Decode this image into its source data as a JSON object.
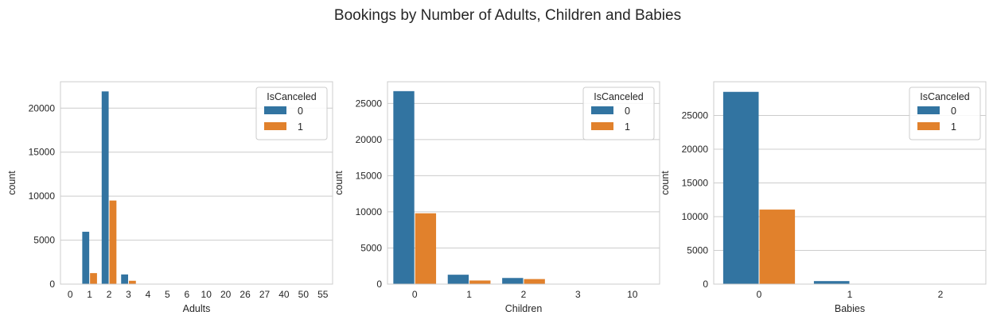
{
  "suptitle": "Bookings by Number of Adults, Children and Babies",
  "colors": {
    "series0": "#3274a1",
    "series1": "#e1812c",
    "grid": "#cccccc",
    "spine": "#cccccc"
  },
  "chart_data": [
    {
      "type": "bar",
      "xlabel": "Adults",
      "ylabel": "count",
      "ylim": [
        0,
        23000
      ],
      "yticks": [
        0,
        5000,
        10000,
        15000,
        20000
      ],
      "categories": [
        "0",
        "1",
        "2",
        "3",
        "4",
        "5",
        "6",
        "10",
        "20",
        "26",
        "27",
        "40",
        "50",
        "55"
      ],
      "series": [
        {
          "name": "0",
          "values": [
            20,
            5950,
            21900,
            1100,
            40,
            5,
            2,
            1,
            1,
            1,
            1,
            1,
            1,
            1
          ]
        },
        {
          "name": "1",
          "values": [
            25,
            1250,
            9500,
            380,
            10,
            1,
            1,
            1,
            1,
            1,
            1,
            1,
            1,
            1
          ]
        }
      ],
      "legend": {
        "title": "IsCanceled",
        "placement": "top-right"
      },
      "grid": "y"
    },
    {
      "type": "bar",
      "xlabel": "Children",
      "ylabel": "count",
      "ylim": [
        0,
        28000
      ],
      "yticks": [
        0,
        5000,
        10000,
        15000,
        20000,
        25000
      ],
      "categories": [
        "0",
        "1",
        "2",
        "3",
        "10"
      ],
      "series": [
        {
          "name": "0",
          "values": [
            26700,
            1300,
            850,
            10,
            1
          ]
        },
        {
          "name": "1",
          "values": [
            9800,
            500,
            700,
            5,
            0
          ]
        }
      ],
      "legend": {
        "title": "IsCanceled",
        "placement": "top-right"
      },
      "grid": "y"
    },
    {
      "type": "bar",
      "xlabel": "Babies",
      "ylabel": "count",
      "ylim": [
        0,
        30000
      ],
      "yticks": [
        0,
        5000,
        10000,
        15000,
        20000,
        25000
      ],
      "categories": [
        "0",
        "1",
        "2"
      ],
      "series": [
        {
          "name": "0",
          "values": [
            28500,
            450,
            10
          ]
        },
        {
          "name": "1",
          "values": [
            11050,
            40,
            2
          ]
        }
      ],
      "legend": {
        "title": "IsCanceled",
        "placement": "top-right"
      },
      "grid": "y"
    }
  ]
}
